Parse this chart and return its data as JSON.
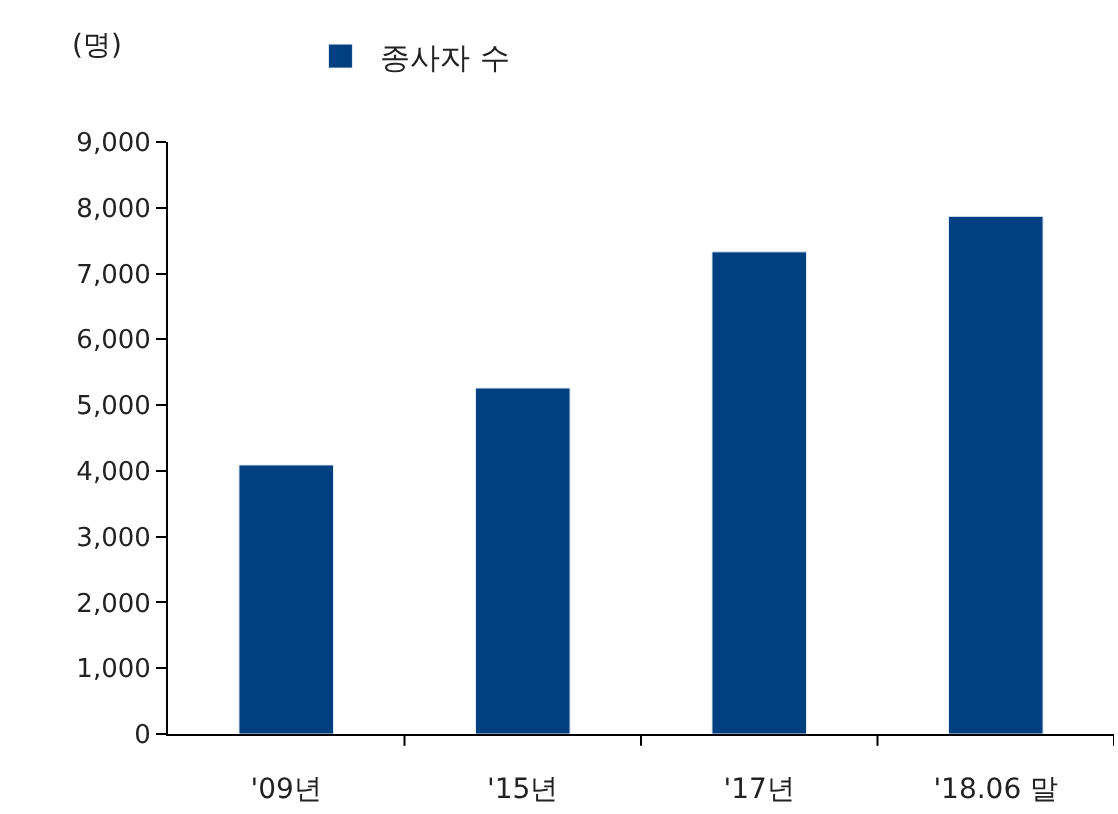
{
  "chart_data": {
    "type": "bar",
    "ylabel": "(명)",
    "categories": [
      "'09년",
      "'15년",
      "'17년",
      "'18.06 말"
    ],
    "series": [
      {
        "name": "종사자 수",
        "color": "#004080",
        "values": [
          4090,
          5260,
          7330,
          7870
        ]
      }
    ],
    "ylim": [
      0,
      9000
    ],
    "yticks": [
      {
        "value": 0,
        "label": "0"
      },
      {
        "value": 1000,
        "label": "1,000"
      },
      {
        "value": 2000,
        "label": "2,000"
      },
      {
        "value": 3000,
        "label": "3,000"
      },
      {
        "value": 4000,
        "label": "4,000"
      },
      {
        "value": 5000,
        "label": "5,000"
      },
      {
        "value": 6000,
        "label": "6,000"
      },
      {
        "value": 7000,
        "label": "7,000"
      },
      {
        "value": 8000,
        "label": "8,000"
      },
      {
        "value": 9000,
        "label": "9,000"
      }
    ],
    "legend": "top"
  }
}
